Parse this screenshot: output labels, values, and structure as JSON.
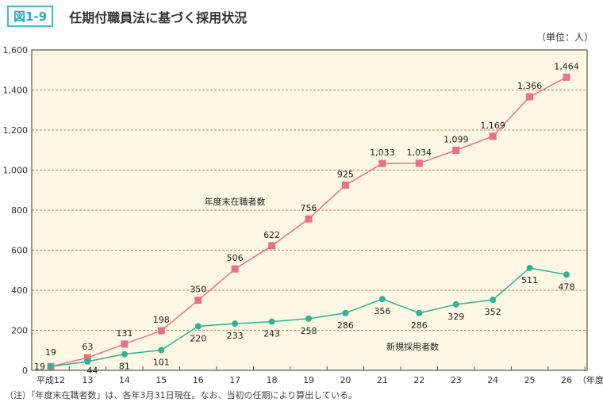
{
  "figure_label": "図1-9",
  "chart_data": {
    "type": "line",
    "title": "任期付職員法に基づく採用状況",
    "unit_label": "（単位：人）",
    "xlabel": "（年度）",
    "categories": [
      "平成12",
      "13",
      "14",
      "15",
      "16",
      "17",
      "18",
      "19",
      "20",
      "21",
      "22",
      "23",
      "24",
      "25",
      "26"
    ],
    "ylim": [
      0,
      1600
    ],
    "yticks": [
      "0",
      "200",
      "400",
      "600",
      "800",
      "1,000",
      "1,200",
      "1,400",
      "1,600"
    ],
    "ytick_values": [
      0,
      200,
      400,
      600,
      800,
      1000,
      1200,
      1400,
      1600
    ],
    "grid": true,
    "series": [
      {
        "name": "年度末在職者数",
        "color": "#e9708b",
        "marker": "square",
        "values": [
          19,
          63,
          131,
          198,
          350,
          506,
          622,
          756,
          925,
          1033,
          1034,
          1099,
          1169,
          1366,
          1464
        ],
        "labels": [
          "19",
          "63",
          "131",
          "198",
          "350",
          "506",
          "622",
          "756",
          "925",
          "1,033",
          "1,034",
          "1,099",
          "1,169",
          "1,366",
          "1,464"
        ]
      },
      {
        "name": "新規採用者数",
        "color": "#2bb596",
        "marker": "circle",
        "values": [
          19,
          44,
          81,
          101,
          220,
          233,
          243,
          258,
          286,
          356,
          286,
          329,
          352,
          511,
          478
        ],
        "labels": [
          "19",
          "44",
          "81",
          "101",
          "220",
          "233",
          "243",
          "258",
          "286",
          "356",
          "286",
          "329",
          "352",
          "511",
          "478"
        ]
      }
    ],
    "background": "#fdf7e3",
    "grid_color": "#b5876a"
  },
  "note": "（注）「年度末在職者数」は、各年3月31日現在。なお、当初の任期により算出している。"
}
